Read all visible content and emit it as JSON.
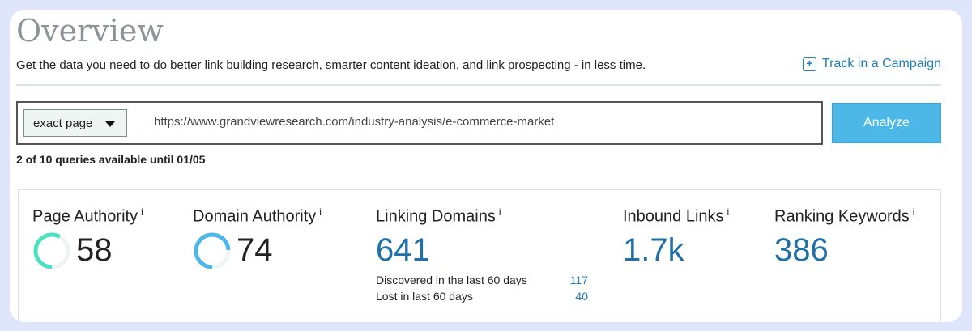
{
  "header": {
    "title": "Overview",
    "subtitle": "Get the data you need to do better link building research, smarter content ideation, and link prospecting - in less time.",
    "track_label": "Track in a Campaign"
  },
  "search": {
    "mode": "exact page",
    "url": "https://www.grandviewresearch.com/industry-analysis/e-commerce-market",
    "analyze_label": "Analyze",
    "queries_text": "2 of 10 queries available until 01/05"
  },
  "stats": {
    "page_authority": {
      "label": "Page Authority",
      "info": "i",
      "value": "58",
      "ring_fraction": 0.58,
      "color": "#4fe0c0"
    },
    "domain_authority": {
      "label": "Domain Authority",
      "info": "i",
      "value": "74",
      "ring_fraction": 0.74,
      "color": "#4db8e8"
    },
    "linking_domains": {
      "label": "Linking Domains",
      "info": "i",
      "value": "641",
      "discovered_label": "Discovered in the last 60 days",
      "discovered_value": "117",
      "lost_label": "Lost in last 60 days",
      "lost_value": "40"
    },
    "inbound_links": {
      "label": "Inbound Links",
      "info": "i",
      "value": "1.7k"
    },
    "ranking_keywords": {
      "label": "Ranking Keywords",
      "info": "i",
      "value": "386"
    }
  }
}
